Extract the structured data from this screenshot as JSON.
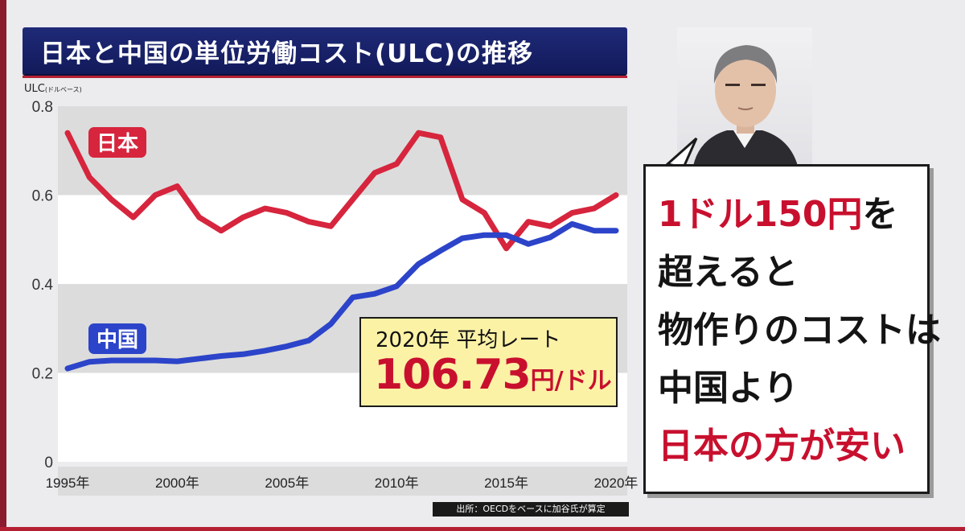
{
  "title": "日本と中国の単位労働コスト(ULC)の推移",
  "y_axis_label": "ULC",
  "y_axis_unit": "(ドルベース)",
  "source": "出所：OECDをベースに加谷氏が算定",
  "callout": {
    "line1": "2020年 平均レート",
    "value": "106.73",
    "unit": "円/ドル"
  },
  "message": {
    "line1_red": "1ドル150円",
    "line1_tail": "を",
    "line2": "超えると",
    "line3": "物作りのコストは",
    "line4": "中国より",
    "line5": "日本の方が安い"
  },
  "colors": {
    "japan": "#d6253d",
    "china": "#2c44c9",
    "title_bg": "#16206a",
    "callout_bg": "#fcf2a6",
    "accent_red": "#c8102e"
  },
  "chart_data": {
    "type": "line",
    "title": "日本と中国の単位労働コスト(ULC)の推移",
    "ylabel": "ULC (ドルベース)",
    "xlabel": "",
    "ylim": [
      0,
      0.8
    ],
    "xlim": [
      1995,
      2020
    ],
    "yticks": [
      0,
      0.2,
      0.4,
      0.6,
      0.8
    ],
    "ytick_labels": [
      "0",
      "0.2",
      "0.4",
      "0.6",
      "0.8"
    ],
    "xticks": [
      1995,
      2000,
      2005,
      2010,
      2015,
      2020
    ],
    "xtick_labels": [
      "1995年",
      "2000年",
      "2005年",
      "2010年",
      "2015年",
      "2020年"
    ],
    "grid": "alternating horizontal bands",
    "x": [
      1995,
      1996,
      1997,
      1998,
      1999,
      2000,
      2001,
      2002,
      2003,
      2004,
      2005,
      2006,
      2007,
      2008,
      2009,
      2010,
      2011,
      2012,
      2013,
      2014,
      2015,
      2016,
      2017,
      2018,
      2019,
      2020
    ],
    "series": [
      {
        "name": "日本",
        "color": "#d6253d",
        "values": [
          0.74,
          0.64,
          0.59,
          0.55,
          0.6,
          0.62,
          0.55,
          0.52,
          0.55,
          0.57,
          0.56,
          0.54,
          0.53,
          0.59,
          0.65,
          0.67,
          0.74,
          0.73,
          0.59,
          0.56,
          0.48,
          0.54,
          0.53,
          0.56,
          0.57,
          0.6
        ]
      },
      {
        "name": "中国",
        "color": "#2c44c9",
        "values": [
          0.21,
          0.225,
          0.228,
          0.228,
          0.228,
          0.226,
          0.232,
          0.238,
          0.242,
          0.25,
          0.26,
          0.273,
          0.31,
          0.37,
          0.378,
          0.395,
          0.445,
          0.475,
          0.503,
          0.51,
          0.51,
          0.49,
          0.505,
          0.535,
          0.52,
          0.52
        ]
      }
    ]
  }
}
